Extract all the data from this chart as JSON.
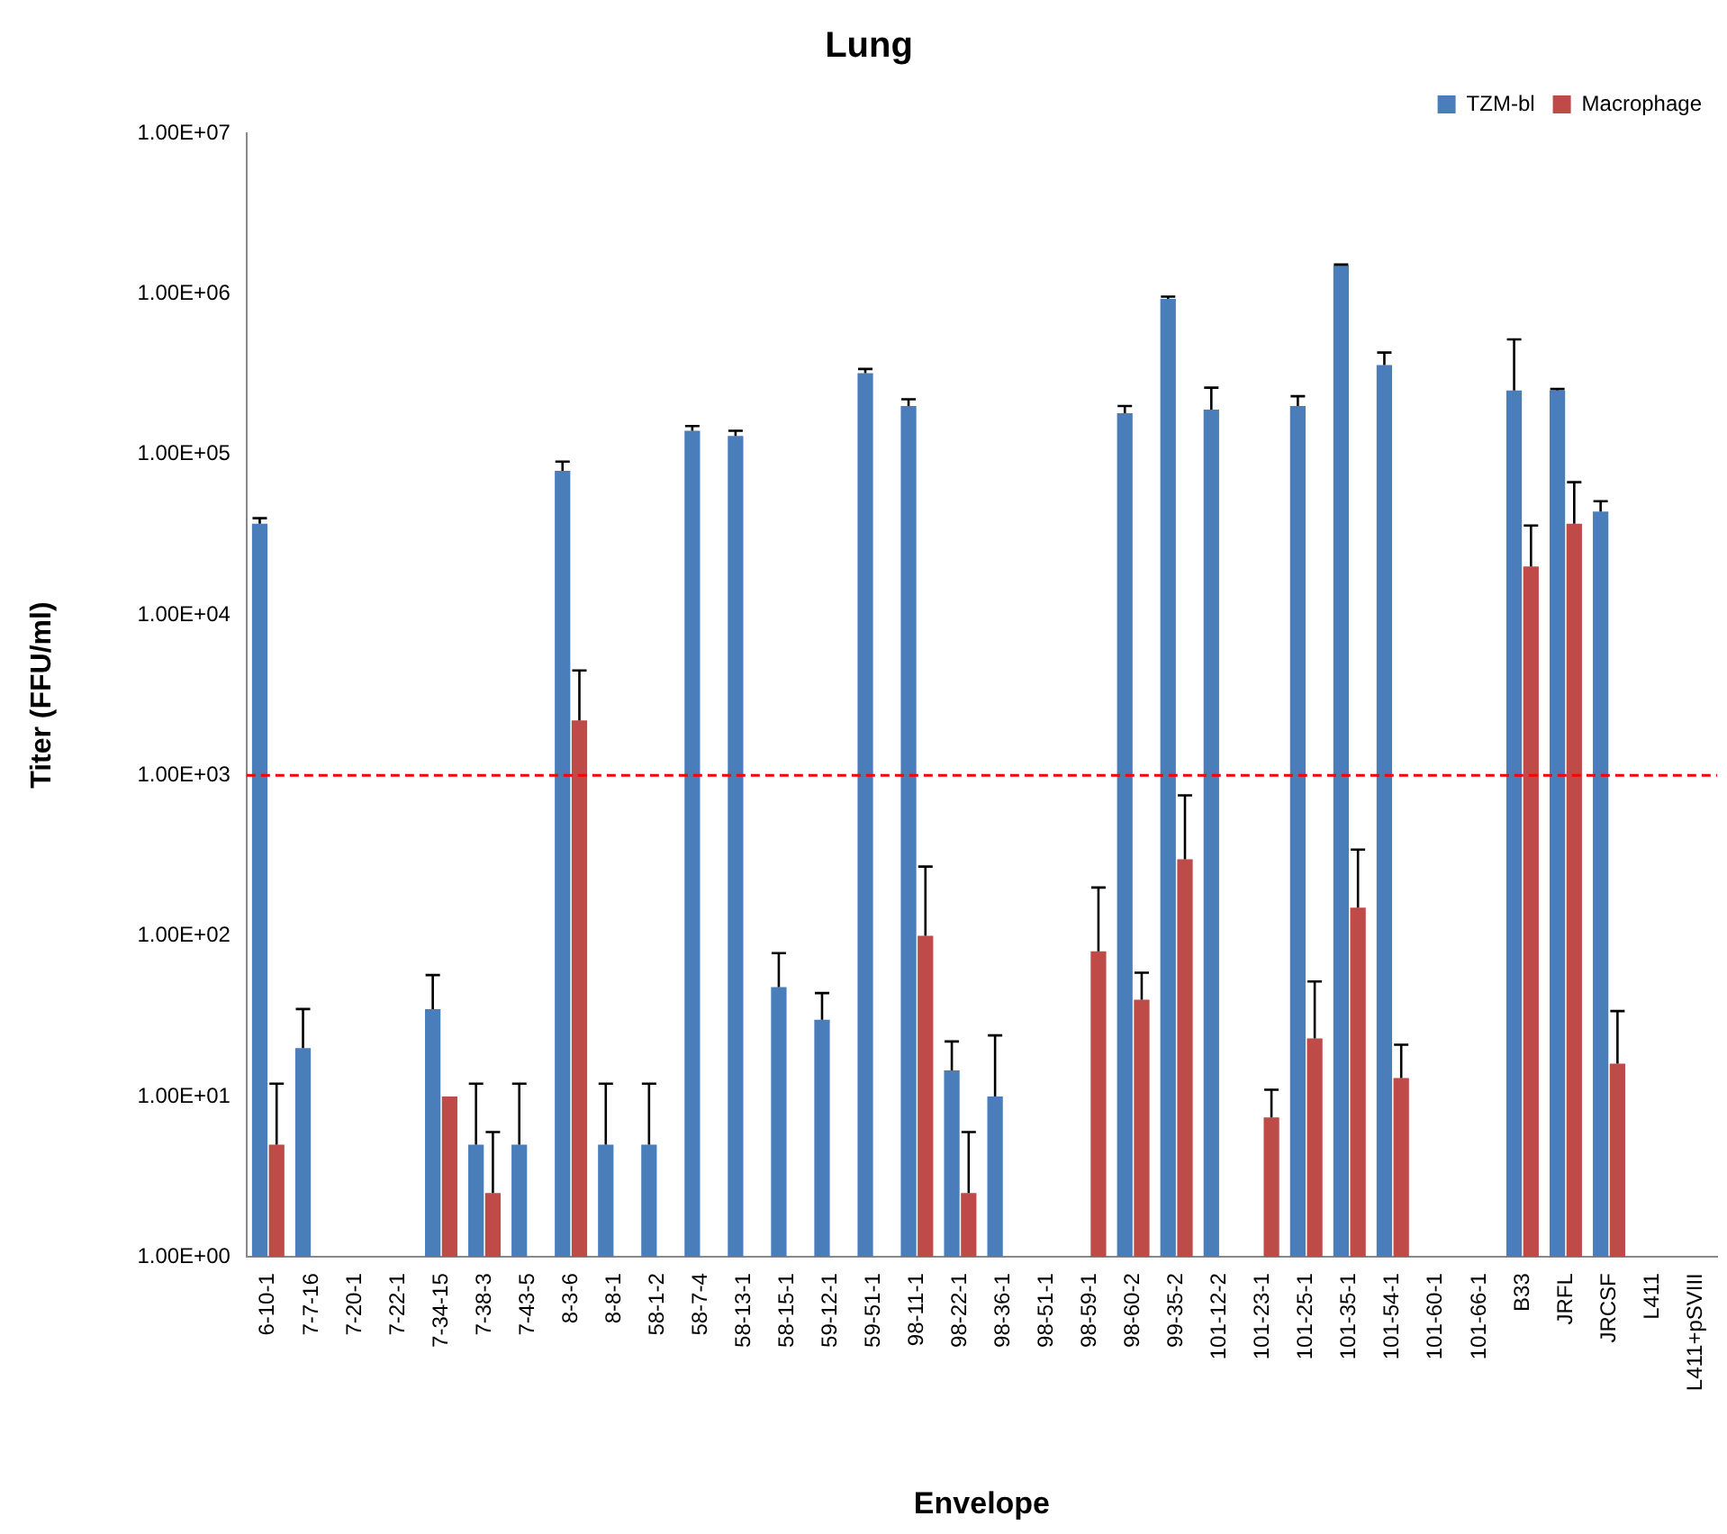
{
  "chart_data": {
    "type": "bar",
    "title": "Lung",
    "xlabel": "Envelope",
    "ylabel": "Titer (FFU/ml)",
    "log": true,
    "legend": "top right",
    "categories": [
      "6-10-1",
      "7-7-16",
      "7-20-1",
      "7-22-1",
      "7-34-15",
      "7-38-3",
      "7-43-5",
      "8-3-6",
      "8-8-1",
      "58-1-2",
      "58-7-4",
      "58-13-1",
      "58-15-1",
      "59-12-1",
      "59-51-1",
      "98-11-1",
      "98-22-1",
      "98-36-1",
      "98-51-1",
      "98-59-1",
      "98-60-2",
      "99-35-2",
      "101-12-2",
      "101-23-1",
      "101-25-1",
      "101-35-1",
      "101-54-1",
      "101-60-1",
      "101-66-1",
      "B33",
      "JRFL",
      "JRCSF",
      "L411",
      "L411+pSVIII"
    ],
    "ylim": [
      1,
      10000000
    ],
    "yticks": [
      {
        "value": 1,
        "label": "1.00E+00"
      },
      {
        "value": 10,
        "label": "1.00E+01"
      },
      {
        "value": 100,
        "label": "1.00E+02"
      },
      {
        "value": 1000,
        "label": "1.00E+03"
      },
      {
        "value": 10000,
        "label": "1.00E+04"
      },
      {
        "value": 100000,
        "label": "1.00E+05"
      },
      {
        "value": 1000000,
        "label": "1.00E+06"
      },
      {
        "value": 10000000,
        "label": "1.00E+07"
      }
    ],
    "ref_lines": [
      {
        "axis": "y",
        "value": 1000,
        "color": "#ff0000",
        "line_style": "dashed"
      }
    ],
    "series": [
      {
        "name": "TZM-bl",
        "color": "#4a7ebb",
        "values": [
          37000,
          20,
          null,
          null,
          35,
          5,
          5,
          79000,
          5,
          5,
          140000,
          130000,
          48,
          30,
          320000,
          200000,
          14.5,
          10,
          null,
          null,
          180000,
          930000,
          190000,
          null,
          200000,
          1500000,
          360000,
          null,
          null,
          250000,
          250000,
          44000,
          null,
          null
        ],
        "errors": [
          [
            37000,
            40000
          ],
          [
            20,
            35
          ],
          null,
          null,
          [
            35,
            57
          ],
          [
            5,
            12
          ],
          [
            5,
            12
          ],
          [
            79000,
            90000
          ],
          [
            5,
            12
          ],
          [
            5,
            12
          ],
          [
            140000,
            150000
          ],
          [
            130000,
            140000
          ],
          [
            48,
            78
          ],
          [
            30,
            44
          ],
          [
            320000,
            340000
          ],
          [
            200000,
            220000
          ],
          [
            14.5,
            22
          ],
          [
            10,
            24
          ],
          null,
          null,
          [
            180000,
            200000
          ],
          [
            930000,
            960000
          ],
          [
            190000,
            260000
          ],
          null,
          [
            200000,
            230000
          ],
          [
            1500000,
            1520000
          ],
          [
            360000,
            430000
          ],
          null,
          null,
          [
            250000,
            520000
          ],
          [
            250000,
            255000
          ],
          [
            44000,
            51000
          ],
          null,
          null
        ]
      },
      {
        "name": "Macrophage",
        "color": "#be4b48",
        "values": [
          5,
          null,
          null,
          null,
          10,
          2.5,
          null,
          2200,
          null,
          null,
          null,
          null,
          null,
          null,
          null,
          100,
          2.5,
          null,
          null,
          80,
          40,
          300,
          null,
          7.4,
          23,
          150,
          13,
          null,
          null,
          20000,
          37000,
          16,
          null,
          null
        ],
        "errors": [
          [
            5,
            12
          ],
          null,
          null,
          null,
          null,
          [
            2.5,
            6
          ],
          null,
          [
            2200,
            4500
          ],
          null,
          null,
          null,
          null,
          null,
          null,
          null,
          [
            100,
            270
          ],
          [
            2.5,
            6
          ],
          null,
          null,
          [
            80,
            200
          ],
          [
            40,
            59
          ],
          [
            300,
            750
          ],
          null,
          [
            7.4,
            11
          ],
          [
            23,
            52
          ],
          [
            150,
            345
          ],
          [
            13,
            21
          ],
          null,
          null,
          [
            20000,
            36000
          ],
          [
            37000,
            67000
          ],
          [
            16,
            34
          ],
          null,
          null
        ]
      }
    ]
  }
}
